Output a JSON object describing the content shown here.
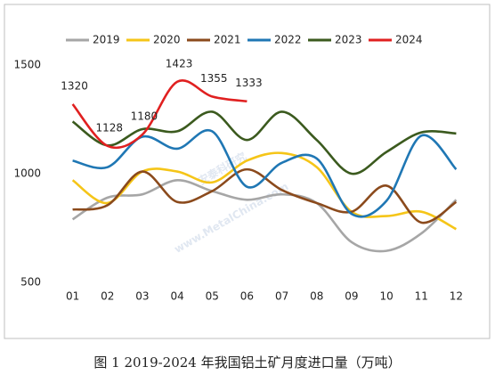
{
  "chart_data": {
    "type": "line",
    "caption": "图 1 2019-2024 年我国铝土矿月度进口量（万吨）",
    "watermark": "安泰科研究",
    "watermark_url": "www.MetalChina.com",
    "categories": [
      "01",
      "02",
      "03",
      "04",
      "05",
      "06",
      "07",
      "08",
      "09",
      "10",
      "11",
      "12"
    ],
    "ylim": [
      500,
      1500
    ],
    "yticks": [
      500,
      1000,
      1500
    ],
    "grid": false,
    "legend": "top",
    "series": [
      {
        "name": "2019",
        "color": "#a6a6a6",
        "values": [
          790,
          890,
          905,
          970,
          920,
          880,
          905,
          865,
          685,
          645,
          725,
          880
        ]
      },
      {
        "name": "2020",
        "color": "#f5c518",
        "values": [
          970,
          865,
          1010,
          1010,
          960,
          1060,
          1095,
          1030,
          825,
          805,
          825,
          745
        ]
      },
      {
        "name": "2021",
        "color": "#8b4a1c",
        "values": [
          835,
          855,
          1010,
          870,
          920,
          1020,
          925,
          865,
          825,
          945,
          775,
          870
        ]
      },
      {
        "name": "2022",
        "color": "#1f77b4",
        "values": [
          1060,
          1030,
          1170,
          1115,
          1195,
          940,
          1050,
          1070,
          815,
          875,
          1175,
          1020
        ]
      },
      {
        "name": "2023",
        "color": "#3b5a1e",
        "values": [
          1240,
          1130,
          1205,
          1195,
          1285,
          1155,
          1285,
          1155,
          1000,
          1100,
          1190,
          1185
        ]
      },
      {
        "name": "2024",
        "color": "#e02020",
        "values": [
          1320,
          1128,
          1180,
          1423,
          1355,
          1333,
          null,
          null,
          null,
          null,
          null,
          null
        ],
        "data_labels": true
      }
    ]
  }
}
